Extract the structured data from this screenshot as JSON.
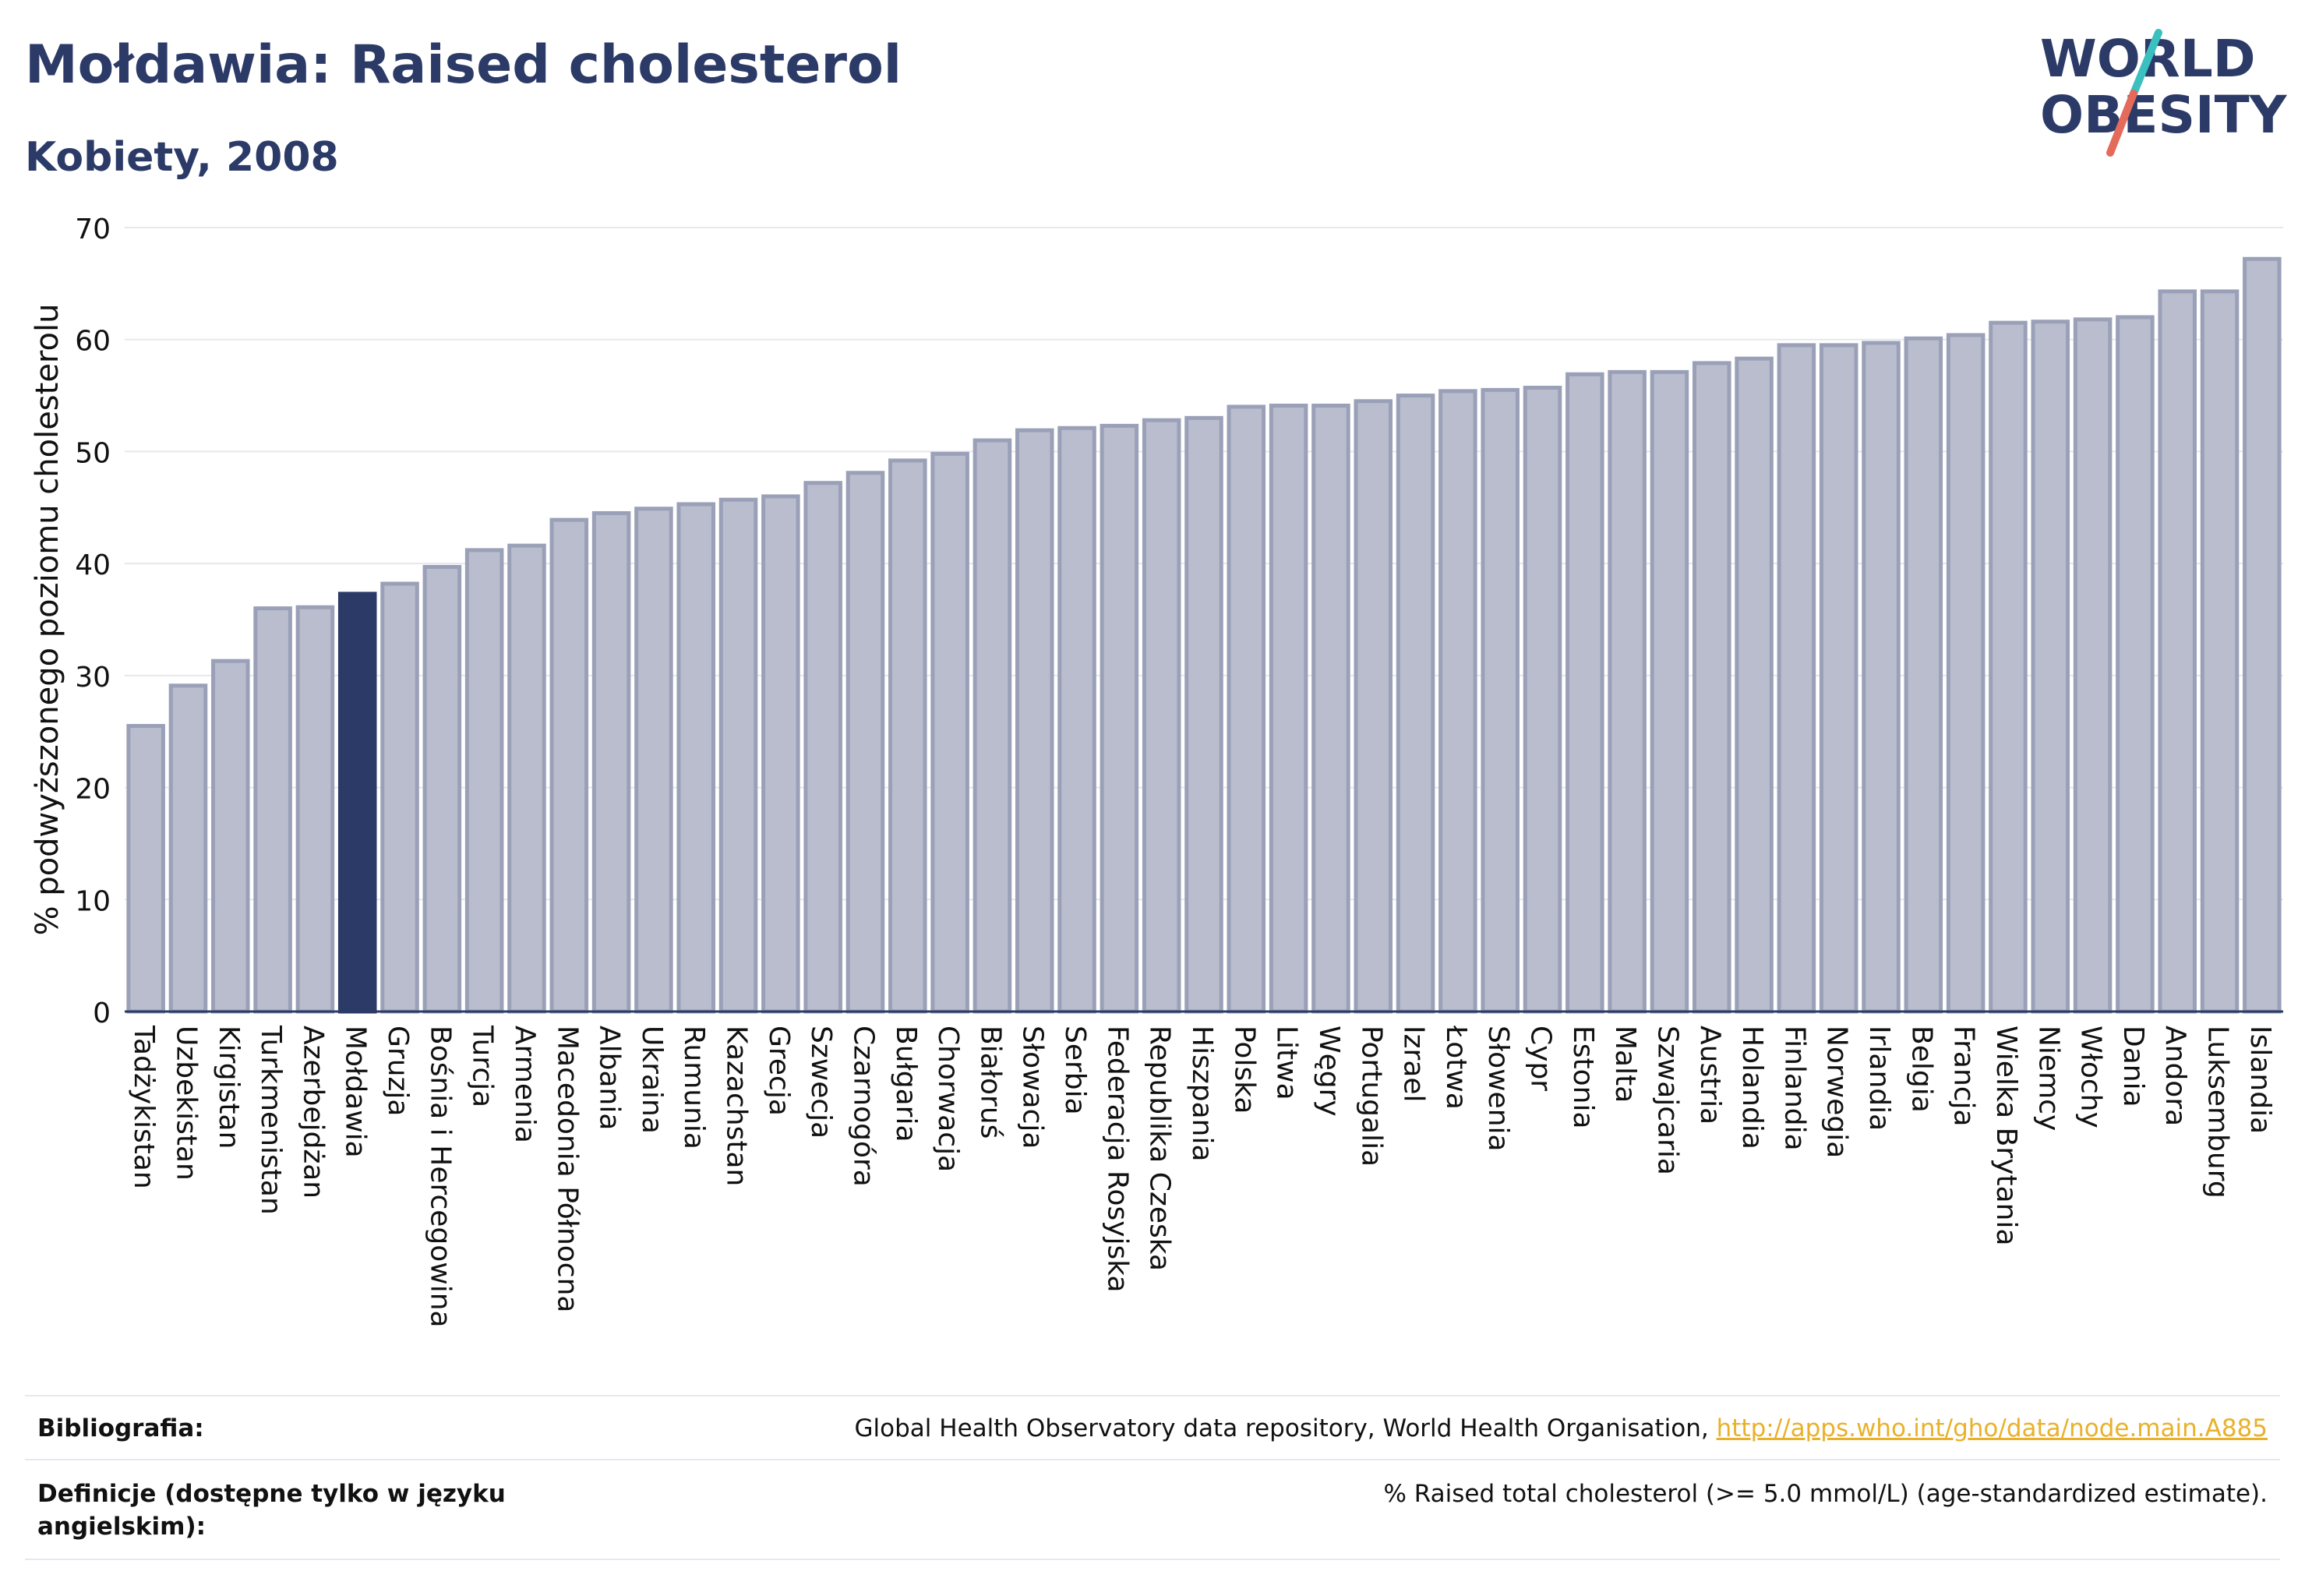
{
  "header": {
    "title": "Mołdawia: Raised cholesterol",
    "subtitle": "Kobiety, 2008"
  },
  "logo": {
    "line1": "WORLD",
    "line2": "OBESITY",
    "accent_teal": "#3bbfbf",
    "accent_coral": "#e46b5b"
  },
  "colors": {
    "bar": "#b9bdcd",
    "bar_border": "#9aa0b7",
    "highlight": "#2b3a67",
    "grid": "#e6e8ee",
    "text": "#2b3a67"
  },
  "chart_data": {
    "type": "bar",
    "title": "Mołdawia: Raised cholesterol",
    "subtitle": "Kobiety, 2008",
    "ylabel": "% podwyższonego poziomu cholesterolu",
    "xlabel": "",
    "ylim": [
      0,
      70
    ],
    "yticks": [
      0,
      10,
      20,
      30,
      40,
      50,
      60,
      70
    ],
    "grid": true,
    "highlight": "Mołdawia",
    "categories": [
      "Tadżykistan",
      "Uzbekistan",
      "Kirgistan",
      "Turkmenistan",
      "Azerbejdżan",
      "Mołdawia",
      "Gruzja",
      "Bośnia i Hercegowina",
      "Turcja",
      "Armenia",
      "Macedonia Północna",
      "Albania",
      "Ukraina",
      "Rumunia",
      "Kazachstan",
      "Grecja",
      "Szwecja",
      "Czarnogóra",
      "Bułgaria",
      "Chorwacja",
      "Białoruś",
      "Słowacja",
      "Serbia",
      "Federacja Rosyjska",
      "Republika Czeska",
      "Hiszpania",
      "Polska",
      "Litwa",
      "Węgry",
      "Portugalia",
      "Izrael",
      "Łotwa",
      "Słowenia",
      "Cypr",
      "Estonia",
      "Malta",
      "Szwajcaria",
      "Austria",
      "Holandia",
      "Finlandia",
      "Norwegia",
      "Irlandia",
      "Belgia",
      "Francja",
      "Wielka Brytania",
      "Niemcy",
      "Włochy",
      "Dania",
      "Andora",
      "Luksemburg",
      "Islandia"
    ],
    "values": [
      25.5,
      29.1,
      31.3,
      36.0,
      36.1,
      37.3,
      38.2,
      39.7,
      41.2,
      41.6,
      43.9,
      44.5,
      44.9,
      45.3,
      45.7,
      46.0,
      47.2,
      48.1,
      49.2,
      49.8,
      51.0,
      51.9,
      52.1,
      52.3,
      52.8,
      53.0,
      54.0,
      54.1,
      54.1,
      54.5,
      55.0,
      55.4,
      55.5,
      55.7,
      56.9,
      57.1,
      57.1,
      57.9,
      58.3,
      59.5,
      59.5,
      59.7,
      60.1,
      60.4,
      61.5,
      61.6,
      61.8,
      62.0,
      64.3,
      64.3,
      67.2
    ]
  },
  "footer": {
    "bibliography_label": "Bibliografia:",
    "bibliography_text": "Global Health Observatory data repository, World Health Organisation, ",
    "bibliography_link": "http://apps.who.int/gho/data/node.main.A885",
    "definitions_label": "Definicje (dostępne tylko w języku angielskim):",
    "definitions_text": "% Raised total cholesterol (>= 5.0 mmol/L) (age-standardized estimate)."
  }
}
